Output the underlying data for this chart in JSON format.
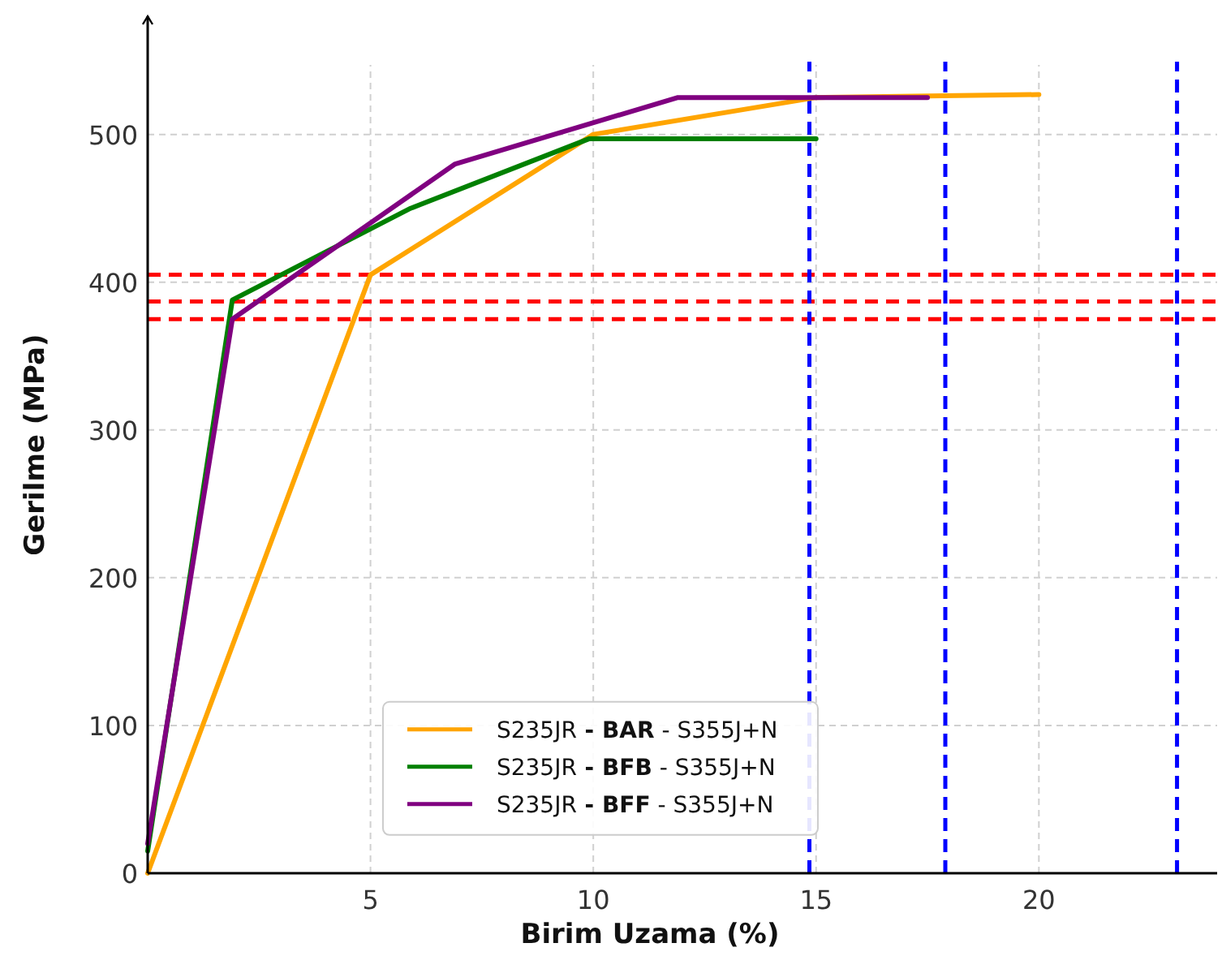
{
  "chart_data": {
    "type": "line",
    "xlabel": "Birim Uzama (%)",
    "ylabel": "Gerilme (MPa)",
    "xlim": [
      0,
      24
    ],
    "ylim": [
      0,
      580
    ],
    "xticks": [
      5,
      10,
      15,
      20
    ],
    "yticks": [
      0,
      100,
      200,
      300,
      400,
      500
    ],
    "grid": true,
    "legend": "bottom",
    "marker": "none",
    "line_style": "solid",
    "series": [
      {
        "name": "S235JR - BAR - S355J+N",
        "color": "#ffa500",
        "x": [
          0,
          5,
          10,
          15,
          20
        ],
        "values": [
          0,
          405,
          500,
          525,
          527
        ]
      },
      {
        "name": "S235JR - BFB - S355J+N",
        "color": "#008000",
        "x": [
          0,
          1.9,
          5.9,
          9.9,
          15
        ],
        "values": [
          15,
          388,
          450,
          497,
          497
        ]
      },
      {
        "name": "S235JR - BFF - S355J+N",
        "color": "#800080",
        "x": [
          0,
          1.9,
          6.9,
          11.9,
          17.5
        ],
        "values": [
          20,
          375,
          480,
          525,
          525
        ]
      }
    ],
    "ref_lines": [
      {
        "axis": "y",
        "value": 405,
        "color": "#ff0000",
        "line_style": "dashed"
      },
      {
        "axis": "y",
        "value": 387,
        "color": "#ff0000",
        "line_style": "dashed"
      },
      {
        "axis": "y",
        "value": 375,
        "color": "#ff0000",
        "line_style": "dashed"
      },
      {
        "axis": "x",
        "value": 14.85,
        "color": "#0000ff",
        "line_style": "dashed"
      },
      {
        "axis": "x",
        "value": 17.9,
        "color": "#0000ff",
        "line_style": "dashed"
      },
      {
        "axis": "x",
        "value": 23.1,
        "color": "#0000ff",
        "line_style": "dashed"
      }
    ]
  }
}
